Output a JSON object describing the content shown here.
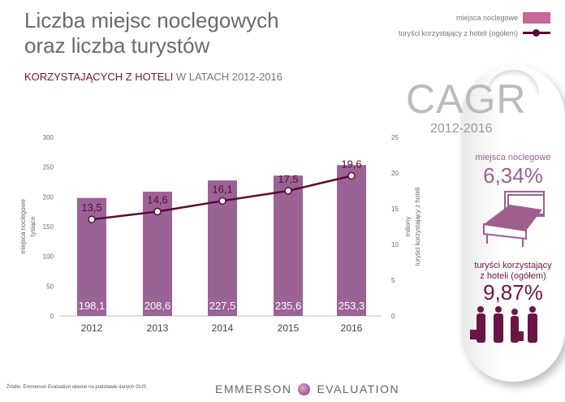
{
  "title": "Liczba miejsc noclegowych oraz liczba turystów",
  "subtitle": {
    "highlight": "KORZYSTAJĄCYCH Z HOTELI",
    "rest": " W LATACH 2012-2016"
  },
  "legend": {
    "bars": "miejsca noclegowe",
    "line": "turyści korzystający z hoteli (ogółem)"
  },
  "cagr": {
    "title": "CAGR",
    "years": "2012-2016",
    "m_label": "miejsca noclegowe",
    "m_value": "6,34%",
    "t_label_1": "turyści korzystający",
    "t_label_2": "z hoteli (ogółem)",
    "t_value": "9,87%"
  },
  "source": "Źródło: Emmerson Evaluation własne na podstawie danych GUS",
  "logo": {
    "left": "EMMERSON",
    "right": "EVALUATION"
  },
  "colors": {
    "bar": "#9b6395",
    "line": "#5a0a35"
  },
  "chart_data": {
    "type": "bar+line",
    "categories": [
      "2012",
      "2013",
      "2014",
      "2015",
      "2016"
    ],
    "series": [
      {
        "name": "miejsca noclegowe",
        "axis": "left",
        "values": [
          198.1,
          208.6,
          227.5,
          235.6,
          253.3
        ],
        "labels": [
          "198,1",
          "208,6",
          "227,5",
          "235,6",
          "253,3"
        ]
      },
      {
        "name": "turyści korzystający z hoteli (ogółem)",
        "axis": "right",
        "values": [
          13.5,
          14.6,
          16.1,
          17.5,
          19.6
        ],
        "labels": [
          "13,5",
          "14,6",
          "16,1",
          "17,5",
          "19,6"
        ]
      }
    ],
    "ylabel_left": [
      "miejsca noclegowe",
      "tysiące"
    ],
    "ylabel_right": [
      "miliony",
      "turyści korzystający z hoteli"
    ],
    "ylim_left": [
      0,
      300
    ],
    "yticks_left": [
      "0",
      "50",
      "100",
      "150",
      "200",
      "250",
      "300"
    ],
    "ylim_right": [
      0,
      25
    ],
    "yticks_right": [
      "0",
      "5",
      "10",
      "15",
      "20",
      "25"
    ]
  }
}
